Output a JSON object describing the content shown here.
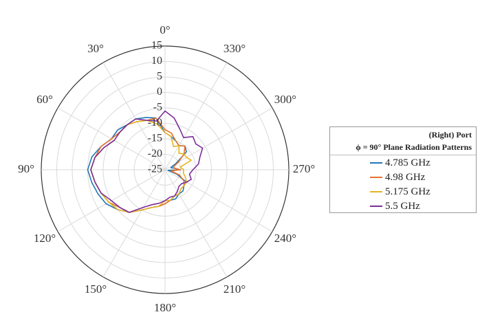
{
  "chart_data": {
    "type": "polar-line",
    "theta_direction": "counterclockwise",
    "theta_zero_location": "top",
    "angle_ticks": [
      "0°",
      "30°",
      "60°",
      "90°",
      "120°",
      "150°",
      "180°",
      "210°",
      "240°",
      "270°",
      "300°",
      "330°"
    ],
    "r_ticks": [
      "15",
      "10",
      "5",
      "0",
      "-5",
      "-10",
      "-15",
      "-20",
      "-25"
    ],
    "r_lim": [
      -25,
      15
    ],
    "grid": true,
    "legend": {
      "position": "right",
      "title_line1": "(Right) Port",
      "title_line2": "ϕ = 90° Plane Radiation Patterns"
    },
    "theta_deg": [
      0,
      10,
      20,
      30,
      40,
      50,
      60,
      70,
      80,
      90,
      100,
      110,
      120,
      130,
      140,
      150,
      160,
      170,
      180,
      190,
      200,
      210,
      220,
      230,
      240,
      250,
      260,
      270,
      280,
      290,
      300,
      310,
      320,
      330,
      340,
      350
    ],
    "series": [
      {
        "name": "4.785 GHz",
        "color": "#1f77b4",
        "r": [
          -13,
          -8,
          -7,
          -6,
          -6,
          -5,
          -5,
          -3,
          -1,
          0,
          -1,
          -2,
          -3,
          -5,
          -7,
          -10,
          -12,
          -13,
          -14,
          -15,
          -15,
          -16,
          -16,
          -17,
          -17,
          -21,
          -24,
          -20,
          -22,
          -23,
          -21,
          -16,
          -15,
          -16,
          -15,
          -14
        ]
      },
      {
        "name": "4.98 GHz",
        "color": "#e8702a",
        "r": [
          -12,
          -8,
          -8,
          -7,
          -6,
          -6,
          -5,
          -3,
          -2,
          -1,
          -2,
          -3,
          -4,
          -6,
          -7,
          -10,
          -12,
          -13,
          -14,
          -15,
          -16,
          -16,
          -17,
          -17,
          -18,
          -20,
          -23,
          -20,
          -22,
          -22,
          -20,
          -17,
          -15,
          -16,
          -15,
          -13
        ]
      },
      {
        "name": "5.175 GHz",
        "color": "#e6b422",
        "r": [
          -13,
          -10,
          -8,
          -7,
          -6,
          -6,
          -6,
          -4,
          -2,
          -1,
          -2,
          -3,
          -4,
          -5,
          -7,
          -10,
          -12,
          -13,
          -15,
          -15,
          -16,
          -16,
          -17,
          -17,
          -17,
          -18,
          -19,
          -19,
          -20,
          -16,
          -17,
          -17,
          -18,
          -16,
          -17,
          -14
        ]
      },
      {
        "name": "5.5 GHz",
        "color": "#7b2d9a",
        "r": [
          -6,
          -9,
          -8,
          -6,
          -6,
          -6,
          -6,
          -4,
          -2,
          -1,
          -2,
          -3,
          -5,
          -6,
          -7,
          -11,
          -13,
          -14,
          -15,
          -16,
          -16,
          -17,
          -18,
          -18,
          -17,
          -16,
          -17,
          -16,
          -14,
          -13,
          -11,
          -12,
          -11,
          -13,
          -11,
          -8
        ]
      }
    ]
  }
}
